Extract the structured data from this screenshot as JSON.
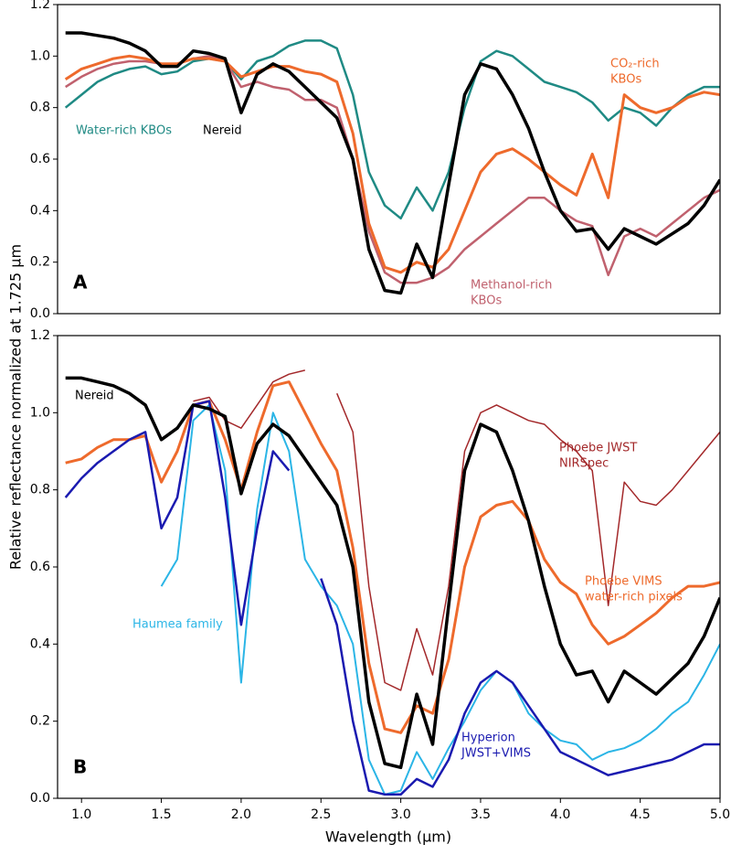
{
  "xlabel": "Wavelength (µm)",
  "ylabel": "Relative reflectance normalized at 1.725 µm",
  "chart_data": [
    {
      "type": "line",
      "panel_label": "A",
      "xlim": [
        0.85,
        5.0
      ],
      "ylim": [
        0,
        1.2
      ],
      "yticks": [
        {
          "value": 0,
          "label": "0.0"
        },
        0.2,
        0.4,
        0.6,
        0.8,
        {
          "value": 1,
          "label": "1.0"
        },
        1.2
      ],
      "x": [
        0.9,
        1.0,
        1.1,
        1.2,
        1.3,
        1.4,
        1.5,
        1.6,
        1.7,
        1.8,
        1.9,
        2.0,
        2.1,
        2.2,
        2.3,
        2.4,
        2.5,
        2.6,
        2.7,
        2.8,
        2.9,
        3.0,
        3.1,
        3.2,
        3.3,
        3.4,
        3.5,
        3.6,
        3.7,
        3.8,
        3.9,
        4.0,
        4.1,
        4.2,
        4.3,
        4.4,
        4.5,
        4.6,
        4.7,
        4.8,
        4.9,
        5.0
      ],
      "series": [
        {
          "label": [
            "Water-rich KBOs"
          ],
          "color": "#1f8a84",
          "values": [
            0.8,
            0.85,
            0.9,
            0.93,
            0.95,
            0.96,
            0.93,
            0.94,
            0.98,
            0.99,
            0.98,
            0.91,
            0.98,
            1.0,
            1.04,
            1.06,
            1.06,
            1.03,
            0.85,
            0.55,
            0.42,
            0.37,
            0.49,
            0.4,
            0.55,
            0.8,
            0.98,
            1.02,
            1.0,
            0.95,
            0.9,
            0.88,
            0.86,
            0.82,
            0.75,
            0.8,
            0.78,
            0.73,
            0.8,
            0.85,
            0.88,
            0.88
          ]
        },
        {
          "label": [
            "Methanol-rich",
            "KBOs"
          ],
          "color": "#c0616e",
          "values": [
            0.88,
            0.92,
            0.95,
            0.97,
            0.98,
            0.98,
            0.97,
            0.97,
            0.99,
            1.0,
            0.98,
            0.88,
            0.9,
            0.88,
            0.87,
            0.83,
            0.83,
            0.8,
            0.6,
            0.32,
            0.16,
            0.12,
            0.12,
            0.14,
            0.18,
            0.25,
            0.3,
            0.35,
            0.4,
            0.45,
            0.45,
            0.4,
            0.36,
            0.34,
            0.15,
            0.3,
            0.33,
            0.3,
            0.35,
            0.4,
            0.45,
            0.48
          ]
        },
        {
          "label": [
            "CO₂-rich",
            "KBOs"
          ],
          "color": "#ee6a2c",
          "values": [
            0.91,
            0.95,
            0.97,
            0.99,
            1.0,
            0.99,
            0.97,
            0.97,
            0.99,
            0.99,
            0.98,
            0.92,
            0.94,
            0.96,
            0.96,
            0.94,
            0.93,
            0.9,
            0.7,
            0.35,
            0.18,
            0.16,
            0.2,
            0.18,
            0.25,
            0.4,
            0.55,
            0.62,
            0.64,
            0.6,
            0.55,
            0.5,
            0.46,
            0.62,
            0.45,
            0.85,
            0.8,
            0.78,
            0.8,
            0.84,
            0.86,
            0.85
          ]
        },
        {
          "label": [
            "Nereid"
          ],
          "color": "#000000",
          "values": [
            1.09,
            1.09,
            1.08,
            1.07,
            1.05,
            1.02,
            0.96,
            0.96,
            1.02,
            1.01,
            0.99,
            0.78,
            0.93,
            0.97,
            0.94,
            0.88,
            0.82,
            0.76,
            0.6,
            0.25,
            0.09,
            0.08,
            0.27,
            0.14,
            0.5,
            0.85,
            0.97,
            0.95,
            0.85,
            0.72,
            0.55,
            0.4,
            0.32,
            0.33,
            0.25,
            0.33,
            0.3,
            0.27,
            0.31,
            0.35,
            0.42,
            0.52
          ]
        }
      ]
    },
    {
      "type": "line",
      "panel_label": "B",
      "xlim": [
        0.85,
        5.0
      ],
      "ylim": [
        0,
        1.2
      ],
      "yticks": [
        {
          "value": 0,
          "label": "0.0"
        },
        0.2,
        0.4,
        0.6,
        0.8,
        {
          "value": 1,
          "label": "1.0"
        },
        1.2
      ],
      "xticks": [
        {
          "value": 1,
          "label": "1.0"
        },
        1.5,
        {
          "value": 2,
          "label": "2.0"
        },
        2.5,
        {
          "value": 3,
          "label": "3.0"
        },
        3.5,
        {
          "value": 4,
          "label": "4.0"
        },
        4.5,
        {
          "value": 5,
          "label": "5.0"
        }
      ],
      "x": [
        0.9,
        1.0,
        1.1,
        1.2,
        1.3,
        1.4,
        1.5,
        1.6,
        1.7,
        1.8,
        1.9,
        2.0,
        2.1,
        2.2,
        2.3,
        2.4,
        2.5,
        2.6,
        2.7,
        2.8,
        2.9,
        3.0,
        3.1,
        3.2,
        3.3,
        3.4,
        3.5,
        3.6,
        3.7,
        3.8,
        3.9,
        4.0,
        4.1,
        4.2,
        4.3,
        4.4,
        4.5,
        4.6,
        4.7,
        4.8,
        4.9,
        5.0
      ],
      "series": [
        {
          "label": [
            "Phoebe JWST",
            "NIRSpec"
          ],
          "color": "#a3282a",
          "values": [
            null,
            null,
            null,
            null,
            null,
            null,
            null,
            null,
            1.03,
            1.04,
            0.98,
            0.96,
            1.02,
            1.08,
            1.1,
            1.11,
            null,
            1.05,
            0.95,
            0.55,
            0.3,
            0.28,
            0.44,
            0.32,
            0.55,
            0.9,
            1.0,
            1.02,
            1.0,
            0.98,
            0.97,
            0.93,
            0.9,
            0.85,
            0.5,
            0.82,
            0.77,
            0.76,
            0.8,
            0.85,
            0.9,
            0.95
          ]
        },
        {
          "label": [
            "Phoebe VIMS",
            "water-rich pixels"
          ],
          "color": "#ee6a2c",
          "values": [
            0.87,
            0.88,
            0.91,
            0.93,
            0.93,
            0.94,
            0.82,
            0.9,
            1.02,
            1.03,
            0.93,
            0.8,
            0.95,
            1.07,
            1.08,
            1.0,
            0.92,
            0.85,
            0.65,
            0.35,
            0.18,
            0.17,
            0.24,
            0.22,
            0.36,
            0.6,
            0.73,
            0.76,
            0.77,
            0.72,
            0.62,
            0.56,
            0.53,
            0.45,
            0.4,
            0.42,
            0.45,
            0.48,
            0.52,
            0.55,
            0.55,
            0.56
          ]
        },
        {
          "label": [
            "Haumea family"
          ],
          "color": "#2bb5e6",
          "values": [
            null,
            null,
            null,
            null,
            null,
            null,
            0.55,
            0.62,
            0.98,
            1.02,
            0.85,
            0.3,
            0.75,
            1.0,
            0.9,
            0.62,
            0.55,
            0.5,
            0.4,
            0.1,
            0.01,
            0.02,
            0.12,
            0.05,
            0.13,
            0.2,
            0.28,
            0.33,
            0.3,
            0.22,
            0.18,
            0.15,
            0.14,
            0.1,
            0.12,
            0.13,
            0.15,
            0.18,
            0.22,
            0.25,
            0.32,
            0.4
          ]
        },
        {
          "label": [
            "Hyperion",
            "JWST+VIMS"
          ],
          "color": "#1a1ab0",
          "values": [
            0.78,
            0.83,
            0.87,
            0.9,
            0.93,
            0.95,
            0.7,
            0.78,
            1.02,
            1.03,
            0.78,
            0.45,
            0.7,
            0.9,
            0.85,
            null,
            0.57,
            0.45,
            0.2,
            0.02,
            0.01,
            0.01,
            0.05,
            0.03,
            0.1,
            0.22,
            0.3,
            0.33,
            0.3,
            0.24,
            0.18,
            0.12,
            0.1,
            0.08,
            0.06,
            0.07,
            0.08,
            0.09,
            0.1,
            0.12,
            0.14,
            0.14
          ]
        },
        {
          "label": [
            "Nereid"
          ],
          "color": "#000000",
          "values": [
            1.09,
            1.09,
            1.08,
            1.07,
            1.05,
            1.02,
            0.93,
            0.96,
            1.02,
            1.01,
            0.99,
            0.79,
            0.92,
            0.97,
            0.94,
            0.88,
            0.82,
            0.76,
            0.6,
            0.25,
            0.09,
            0.08,
            0.27,
            0.14,
            0.5,
            0.85,
            0.97,
            0.95,
            0.85,
            0.72,
            0.55,
            0.4,
            0.32,
            0.33,
            0.25,
            0.33,
            0.3,
            0.27,
            0.31,
            0.35,
            0.42,
            0.52
          ]
        }
      ]
    }
  ]
}
